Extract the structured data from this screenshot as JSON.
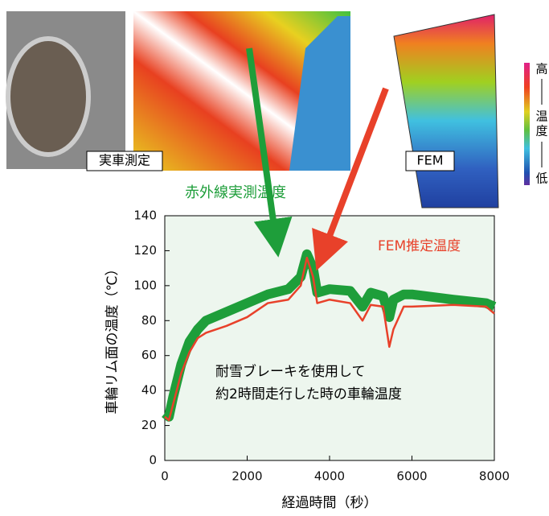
{
  "chart_data": {
    "type": "line",
    "x_label": "経過時間（秒）",
    "y_label": "車輪リム面の温度（℃）",
    "annotations": [
      "耐雪ブレーキを使用して",
      "約2時間走行した時の車輪温度"
    ],
    "photo_labels": [
      "実車測定",
      "FEM"
    ],
    "scale_labels": [
      "高",
      "温",
      "度",
      "低"
    ],
    "x": [
      0,
      100,
      200,
      400,
      600,
      800,
      1000,
      1500,
      2000,
      2500,
      3000,
      3300,
      3450,
      3600,
      3700,
      4000,
      4500,
      4800,
      5000,
      5300,
      5450,
      5550,
      5800,
      6000,
      7000,
      7800,
      8000
    ],
    "series": [
      {
        "name": "赤外線実測温度",
        "color": "#1e9e3a",
        "values": [
          27,
          25,
          36,
          55,
          68,
          75,
          80,
          85,
          90,
          95,
          98,
          105,
          118,
          110,
          96,
          98,
          97,
          88,
          96,
          94,
          82,
          92,
          95,
          95,
          92,
          90,
          88
        ]
      },
      {
        "name": "FEM推定温度",
        "color": "#e8412a",
        "values": [
          25,
          23,
          32,
          50,
          62,
          70,
          73,
          77,
          82,
          90,
          92,
          100,
          116,
          105,
          90,
          92,
          90,
          80,
          89,
          88,
          65,
          75,
          88,
          88,
          89,
          88,
          84
        ]
      }
    ],
    "xlim": [
      0,
      8000
    ],
    "xticks": [
      0,
      2000,
      4000,
      6000,
      8000
    ],
    "ylim": [
      0,
      140
    ],
    "yticks": [
      0,
      20,
      40,
      60,
      80,
      100,
      120,
      140
    ]
  }
}
